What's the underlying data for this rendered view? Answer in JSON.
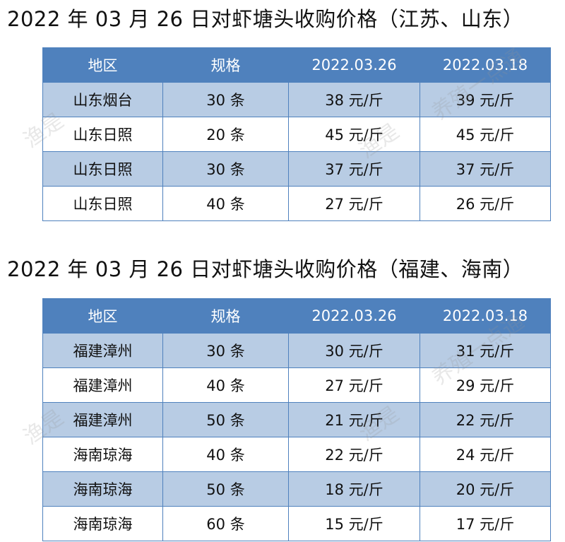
{
  "section1": {
    "title": "2022 年 03 月 26 日对虾塘头收购价格（江苏、山东）",
    "headers": [
      "地区",
      "规格",
      "2022.03.26",
      "2022.03.18"
    ],
    "rows": [
      [
        "山东烟台",
        "30 条",
        "38 元/斤",
        "39 元/斤"
      ],
      [
        "山东日照",
        "20 条",
        "45 元/斤",
        "45 元/斤"
      ],
      [
        "山东日照",
        "30 条",
        "37 元/斤",
        "37 元/斤"
      ],
      [
        "山东日照",
        "40 条",
        "27 元/斤",
        "26 元/斤"
      ]
    ]
  },
  "section2": {
    "title": "2022 年 03 月 26 日对虾塘头收购价格（福建、海南）",
    "headers": [
      "地区",
      "规格",
      "2022.03.26",
      "2022.03.18"
    ],
    "rows": [
      [
        "福建漳州",
        "30 条",
        "30 元/斤",
        "31 元/斤"
      ],
      [
        "福建漳州",
        "40 条",
        "27 元/斤",
        "29 元/斤"
      ],
      [
        "福建漳州",
        "50 条",
        "21 元/斤",
        "22 元/斤"
      ],
      [
        "海南琼海",
        "40 条",
        "22 元/斤",
        "24 元/斤"
      ],
      [
        "海南琼海",
        "50 条",
        "18 元/斤",
        "20 元/斤"
      ],
      [
        "海南琼海",
        "60 条",
        "15 元/斤",
        "17 元/斤"
      ]
    ]
  },
  "watermarks": {
    "brand_a": "养殖一点通",
    "brand_b": "渔是"
  }
}
